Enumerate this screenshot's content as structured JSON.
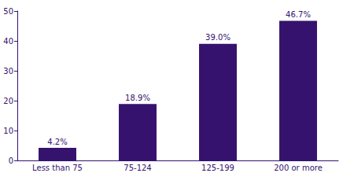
{
  "chart_data": {
    "type": "bar",
    "categories": [
      "Less than 75",
      "75-124",
      "125-199",
      "200 or more"
    ],
    "values": [
      4.2,
      18.9,
      39.0,
      46.7
    ],
    "value_labels": [
      "4.2%",
      "18.9%",
      "39.0%",
      "46.7%"
    ],
    "data_labels": true,
    "color": "#35126e",
    "ylim": [
      0,
      50
    ],
    "yticks": [
      0,
      10,
      20,
      30,
      40,
      50
    ],
    "grid": false
  }
}
